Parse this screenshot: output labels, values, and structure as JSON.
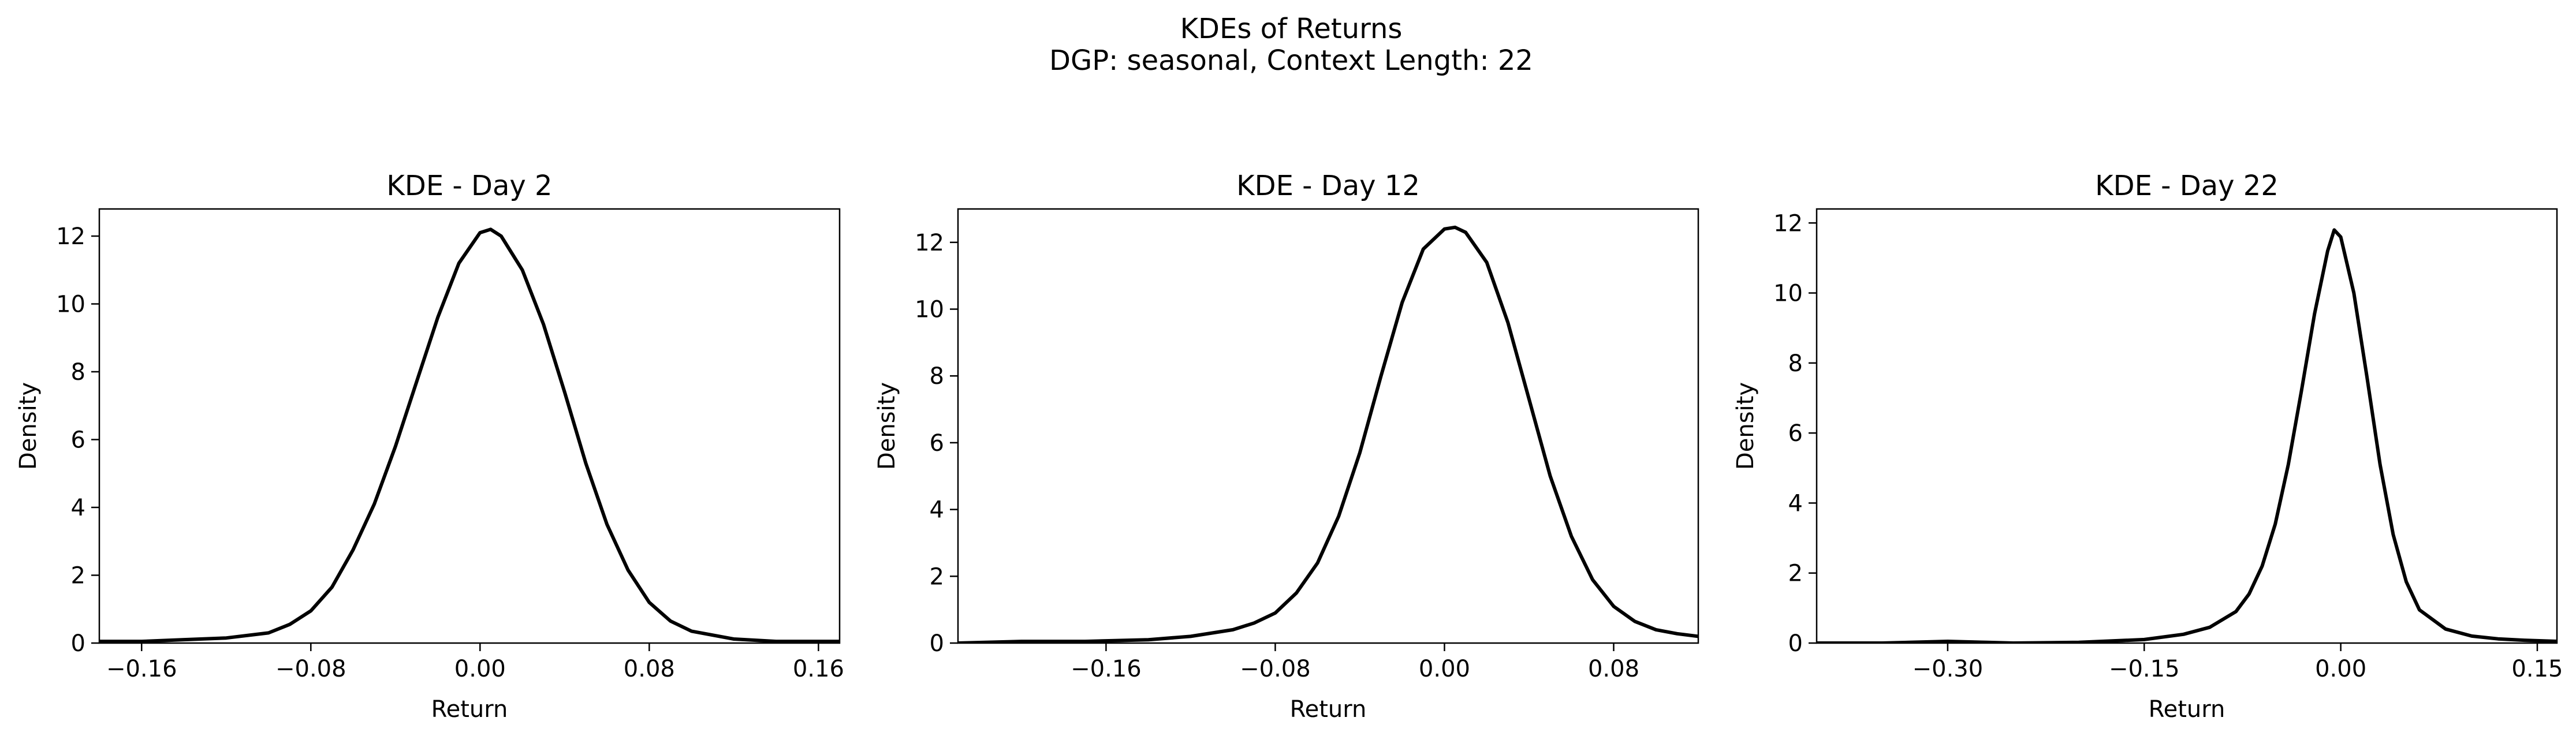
{
  "figure": {
    "title_line1": "KDEs of Returns",
    "title_line2": "DGP: seasonal, Context Length: 22"
  },
  "chart_data": [
    {
      "type": "line",
      "title": "KDE - Day 2",
      "xlabel": "Return",
      "ylabel": "Density",
      "xlim": [
        -0.18,
        0.17
      ],
      "ylim": [
        0,
        12.8
      ],
      "xticks": [
        -0.16,
        -0.08,
        0.0,
        0.08,
        0.16
      ],
      "xtick_labels": [
        "−0.16",
        "−0.08",
        "0.00",
        "0.08",
        "0.16"
      ],
      "yticks": [
        0,
        2,
        4,
        6,
        8,
        10,
        12
      ],
      "ytick_labels": [
        "0",
        "2",
        "4",
        "6",
        "8",
        "10",
        "12"
      ],
      "grid": false,
      "line_color": "#000000",
      "series": [
        {
          "x": [
            -0.18,
            -0.16,
            -0.14,
            -0.12,
            -0.1,
            -0.09,
            -0.08,
            -0.07,
            -0.06,
            -0.05,
            -0.04,
            -0.03,
            -0.02,
            -0.01,
            0.0,
            0.005,
            0.01,
            0.02,
            0.03,
            0.04,
            0.05,
            0.06,
            0.07,
            0.08,
            0.09,
            0.1,
            0.12,
            0.14,
            0.16,
            0.17
          ],
          "y": [
            0.05,
            0.05,
            0.1,
            0.15,
            0.3,
            0.55,
            0.95,
            1.65,
            2.75,
            4.1,
            5.8,
            7.7,
            9.6,
            11.2,
            12.1,
            12.2,
            12.0,
            11.0,
            9.4,
            7.4,
            5.3,
            3.5,
            2.15,
            1.2,
            0.65,
            0.35,
            0.12,
            0.05,
            0.05,
            0.05
          ]
        }
      ]
    },
    {
      "type": "line",
      "title": "KDE - Day 12",
      "xlabel": "Return",
      "ylabel": "Density",
      "xlim": [
        -0.23,
        0.12
      ],
      "ylim": [
        0,
        13.0
      ],
      "xticks": [
        -0.16,
        -0.08,
        0.0,
        0.08
      ],
      "xtick_labels": [
        "−0.16",
        "−0.08",
        "0.00",
        "0.08"
      ],
      "yticks": [
        0,
        2,
        4,
        6,
        8,
        10,
        12
      ],
      "ytick_labels": [
        "0",
        "2",
        "4",
        "6",
        "8",
        "10",
        "12"
      ],
      "grid": false,
      "line_color": "#000000",
      "series": [
        {
          "x": [
            -0.23,
            -0.2,
            -0.17,
            -0.14,
            -0.12,
            -0.1,
            -0.09,
            -0.08,
            -0.07,
            -0.06,
            -0.05,
            -0.04,
            -0.03,
            -0.02,
            -0.01,
            0.0,
            0.005,
            0.01,
            0.02,
            0.03,
            0.04,
            0.05,
            0.06,
            0.07,
            0.08,
            0.09,
            0.1,
            0.11,
            0.12
          ],
          "y": [
            0.0,
            0.05,
            0.05,
            0.1,
            0.2,
            0.4,
            0.6,
            0.9,
            1.5,
            2.4,
            3.8,
            5.7,
            8.0,
            10.2,
            11.8,
            12.4,
            12.45,
            12.3,
            11.4,
            9.6,
            7.3,
            5.0,
            3.2,
            1.9,
            1.1,
            0.65,
            0.4,
            0.28,
            0.2
          ]
        }
      ]
    },
    {
      "type": "line",
      "title": "KDE - Day 22",
      "xlabel": "Return",
      "ylabel": "Density",
      "xlim": [
        -0.4,
        0.165
      ],
      "ylim": [
        0,
        12.4
      ],
      "xticks": [
        -0.3,
        -0.15,
        0.0,
        0.15
      ],
      "xtick_labels": [
        "−0.30",
        "−0.15",
        "0.00",
        "0.15"
      ],
      "yticks": [
        0,
        2,
        4,
        6,
        8,
        10,
        12
      ],
      "ytick_labels": [
        "0",
        "2",
        "4",
        "6",
        "8",
        "10",
        "12"
      ],
      "grid": false,
      "line_color": "#000000",
      "series": [
        {
          "x": [
            -0.4,
            -0.35,
            -0.3,
            -0.27,
            -0.25,
            -0.2,
            -0.15,
            -0.12,
            -0.1,
            -0.08,
            -0.07,
            -0.06,
            -0.05,
            -0.04,
            -0.03,
            -0.02,
            -0.01,
            -0.005,
            0.0,
            0.01,
            0.02,
            0.03,
            0.04,
            0.05,
            0.06,
            0.08,
            0.1,
            0.12,
            0.14,
            0.165
          ],
          "y": [
            0.0,
            0.0,
            0.05,
            0.02,
            0.0,
            0.02,
            0.1,
            0.25,
            0.45,
            0.9,
            1.4,
            2.2,
            3.4,
            5.1,
            7.2,
            9.4,
            11.2,
            11.8,
            11.6,
            10.0,
            7.6,
            5.1,
            3.1,
            1.75,
            0.95,
            0.4,
            0.2,
            0.12,
            0.08,
            0.05
          ]
        }
      ]
    }
  ]
}
